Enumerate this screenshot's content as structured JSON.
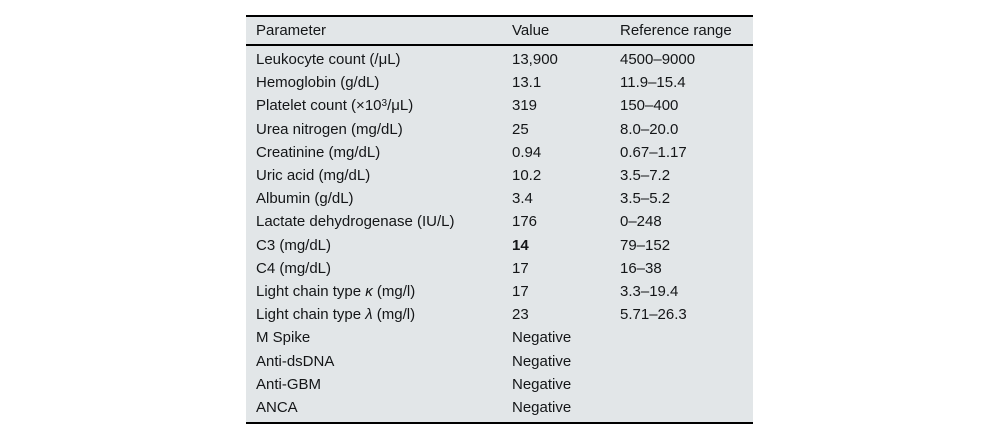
{
  "table": {
    "columns": [
      "Parameter",
      "Value",
      "Reference range"
    ],
    "rows": [
      {
        "parameter": "Leukocyte count (/μL)",
        "value": "13,900",
        "range": "4500–9000"
      },
      {
        "parameter": "Hemoglobin (g/dL)",
        "value": "13.1",
        "range": "11.9–15.4"
      },
      {
        "parameter": "Platelet count (×10³/μL)",
        "value": "319",
        "range": "150–400",
        "parts": [
          {
            "text": "Platelet count (×10"
          },
          {
            "text": "3",
            "style": "sup"
          },
          {
            "text": "/μL)"
          }
        ]
      },
      {
        "parameter": "Urea nitrogen (mg/dL)",
        "value": "25",
        "range": "8.0–20.0"
      },
      {
        "parameter": "Creatinine (mg/dL)",
        "value": "0.94",
        "range": "0.67–1.17"
      },
      {
        "parameter": "Uric acid (mg/dL)",
        "value": "10.2",
        "range": "3.5–7.2"
      },
      {
        "parameter": "Albumin (g/dL)",
        "value": "3.4",
        "range": "3.5–5.2"
      },
      {
        "parameter": "Lactate dehydrogenase (IU/L)",
        "value": "176",
        "range": "0–248"
      },
      {
        "parameter": "C3 (mg/dL)",
        "value": "14",
        "value_bold": true,
        "range": "79–152"
      },
      {
        "parameter": "C4 (mg/dL)",
        "value": "17",
        "range": "16–38"
      },
      {
        "parameter": "Light chain type κ (mg/l)",
        "value": "17",
        "range": "3.3–19.4",
        "parts": [
          {
            "text": "Light chain type "
          },
          {
            "text": "κ",
            "style": "italic"
          },
          {
            "text": " (mg/l)"
          }
        ]
      },
      {
        "parameter": "Light chain type λ (mg/l)",
        "value": "23",
        "range": "5.71–26.3",
        "parts": [
          {
            "text": "Light chain type "
          },
          {
            "text": "λ",
            "style": "italic"
          },
          {
            "text": " (mg/l)"
          }
        ]
      },
      {
        "parameter": "M Spike",
        "value": "Negative",
        "range": ""
      },
      {
        "parameter": "Anti-dsDNA",
        "value": "Negative",
        "range": ""
      },
      {
        "parameter": "Anti-GBM",
        "value": "Negative",
        "range": ""
      },
      {
        "parameter": "ANCA",
        "value": "Negative",
        "range": ""
      }
    ]
  },
  "colors": {
    "table_background": "#e2e6e8",
    "rule": "#000000",
    "text": "#141618"
  }
}
